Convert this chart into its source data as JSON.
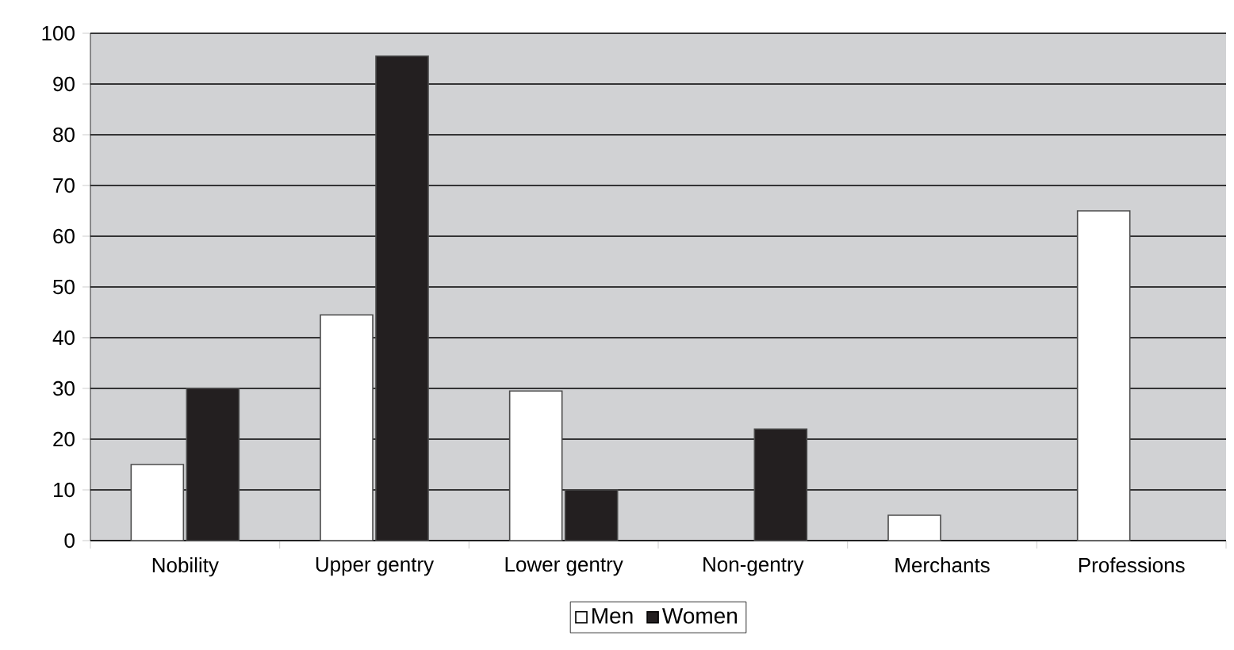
{
  "chart_data": {
    "type": "bar",
    "categories": [
      "Nobility",
      "Upper gentry",
      "Lower gentry",
      "Non-gentry",
      "Merchants",
      "Professions"
    ],
    "series": [
      {
        "name": "Men",
        "color": "#ffffff",
        "values": [
          15,
          44.5,
          29.5,
          null,
          5,
          65
        ]
      },
      {
        "name": "Women",
        "color": "#231f20",
        "values": [
          30,
          95.5,
          10,
          22,
          null,
          null
        ]
      }
    ],
    "ylim": [
      0,
      100
    ],
    "yticks": [
      0,
      10,
      20,
      30,
      40,
      50,
      60,
      70,
      80,
      90,
      100
    ],
    "grid": "y",
    "legend": "bottom"
  }
}
